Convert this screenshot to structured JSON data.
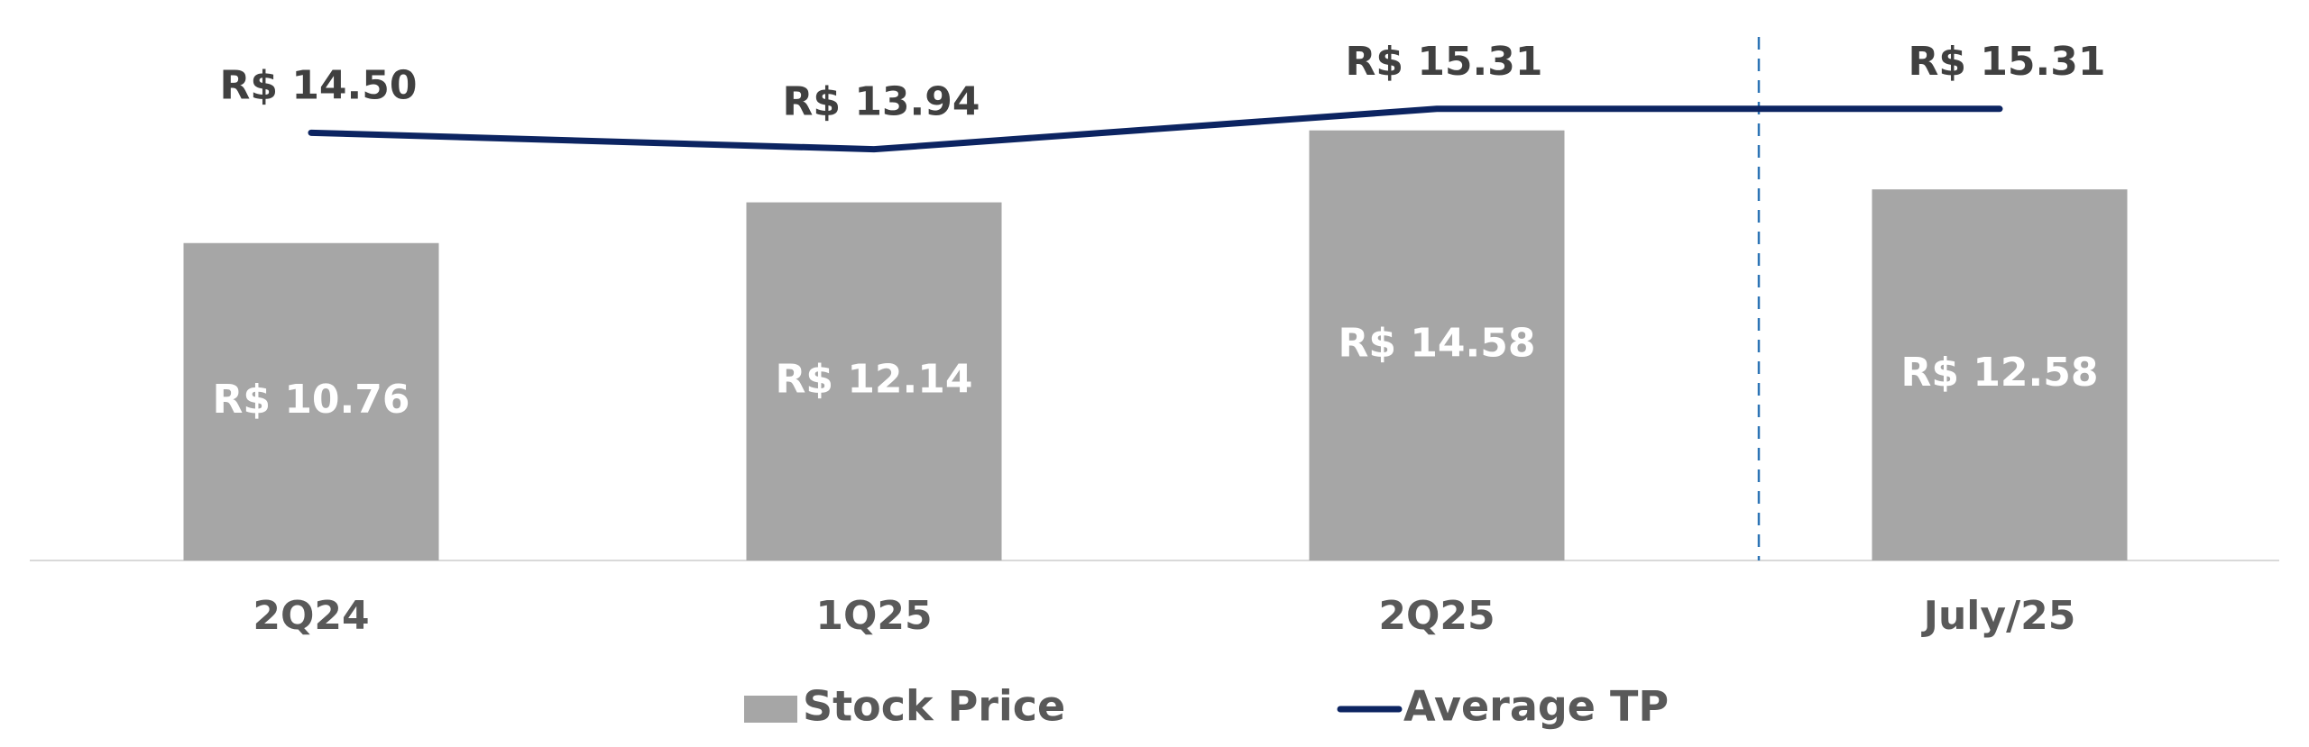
{
  "chart_data": {
    "type": "bar_line",
    "categories": [
      "2Q24",
      "1Q25",
      "2Q25",
      "July/25"
    ],
    "series": [
      {
        "name": "Stock Price",
        "type": "bar",
        "color": "#a6a6a6",
        "values": [
          10.76,
          12.14,
          14.58,
          12.58
        ],
        "value_labels": [
          "R$ 10.76",
          "R$ 12.14",
          "R$ 14.58",
          "R$ 12.58"
        ]
      },
      {
        "name": "Average TP",
        "type": "line",
        "color": "#0c2461",
        "values": [
          14.5,
          13.94,
          15.31,
          15.31
        ],
        "value_labels": [
          "R$ 14.50",
          "R$ 13.94",
          "R$ 15.31",
          "R$ 15.31"
        ]
      }
    ],
    "ylim": [
      0,
      19
    ],
    "legend": "bottom"
  }
}
